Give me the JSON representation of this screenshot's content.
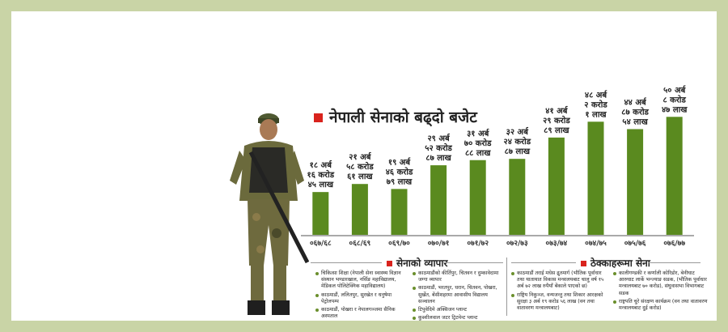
{
  "chart_data": {
    "type": "bar",
    "title": "नेपाली सेनाको बढ्दो बजेट",
    "categories": [
      "०६७/६८",
      "०६८/६९",
      "०६९/७०",
      "०७०/७१",
      "०७१/७२",
      "०७२/७३",
      "०७३/७४",
      "०७४/७५",
      "०७५/७६",
      "०७६/७७"
    ],
    "values": [
      18.1645,
      21.5861,
      19.4679,
      29.5287,
      31.7088,
      32.2487,
      41.2989,
      48.0201,
      44.8754,
      50.0847
    ],
    "value_labels": [
      [
        "१८ अर्ब",
        "१६ करोड",
        "४५ लाख"
      ],
      [
        "२१ अर्ब",
        "५८ करोड",
        "६१ लाख"
      ],
      [
        "१९ अर्ब",
        "४६ करोड",
        "७९ लाख"
      ],
      [
        "२९ अर्ब",
        "५२ करोड",
        "८७ लाख"
      ],
      [
        "३१ अर्ब",
        "७० करोड",
        "८८ लाख"
      ],
      [
        "३२ अर्ब",
        "२४ करोड",
        "८७ लाख"
      ],
      [
        "४१ अर्ब",
        "२९ करोड",
        "८९ लाख"
      ],
      [
        "४८ अर्ब",
        "२ करोड",
        "१ लाख"
      ],
      [
        "४४ अर्ब",
        "८७ करोड",
        "५४ लाख"
      ],
      [
        "५० अर्ब",
        "८ करोड",
        "४७ लाख"
      ]
    ],
    "ylim": [
      0,
      55
    ],
    "bar_color": "#5a8a1f"
  },
  "sections": {
    "business": {
      "title": "सेनाको व्यापार",
      "col1": [
        "चिकित्सा शिक्षा (नेपाली सेना स्वास्थ्य विज्ञान संस्थान भण्डारखाल, नर्सिङ महाविद्यालय, मेडिकल पोलिटेक्निक महाविद्यालय)",
        "काठमाडौं, ललितपुर, सुरखेत र धनुषेमा पेट्रोलपम्प",
        "काठमाडौं, पोखरा र नेपालगञ्जमा सैनिक अस्पताल"
      ],
      "col2": [
        "काठमाडौंको कीर्तिपुर, चितवन र दुम्कावेदामा जग्गा व्यापार",
        "काठमाडौं, भरतपुर, धरान, चितवन, पोखरा, सुर्खेत, बेंसीशहरमा आवासीय विद्यालय सञ्चालन",
        "टिपुवेदिमे अक्सिजन प्लान्ट",
        "कुश्शीलवाल जटर ट्रिटमेन्ट प्लान्ट"
      ]
    },
    "contracts": {
      "title": "ठेक्काहरूमा सेना",
      "col1": [
        "काठमाडौं तराई मधेस द्रुतमार्ग (भौतिक पूर्वाधार तथा यातायात विकास मन्त्रालयबाट चालु वर्ष १५ अर्ब ७२ लाख रुपैयाँ बेंकाले पाएको छ)",
        "राष्ट्रिय निकुञ्ज, वन्यजन्तु तथा शिकार आरक्षको सुरक्षा ३ अर्ब १९ करोड ५६ लाख (वन तथा वातावरण मन्त्रालयबाट)"
      ],
      "col2": [
        "कालीगण्डकी र कर्णाली कोरिडोर, बेनीघाट आरुघाट लार्के भन्ज्याङ सडक, (भौतिक पूर्वाधार मन्त्रालयबाट ७० करोड), संघुवासभा विभागबाट सडक",
        "राष्ट्रपति चुरे संरक्षण कार्यक्रम (वन तथा वातावरण मन्त्रालयबाट दुई करोड)"
      ]
    }
  }
}
